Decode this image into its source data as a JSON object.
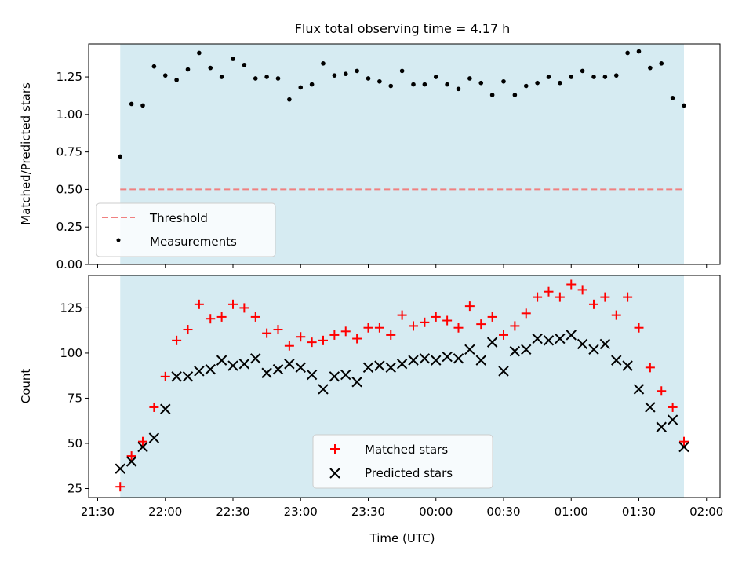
{
  "chart_data": [
    {
      "type": "scatter",
      "title": "Flux total observing time = 4.17 h",
      "xlabel": "",
      "ylabel": "Matched/Predicted stars",
      "xlim": [
        "21:26",
        "02:06"
      ],
      "ylim": [
        0,
        1.47
      ],
      "yticks": [
        0.0,
        0.25,
        0.5,
        0.75,
        1.0,
        1.25
      ],
      "ytick_labels": [
        "0.00",
        "0.25",
        "0.50",
        "0.75",
        "1.00",
        "1.25"
      ],
      "grid": false,
      "observing_window": [
        "21:40",
        "01:50"
      ],
      "legend_position": "lower-left",
      "threshold": {
        "name": "Threshold",
        "value": 0.5,
        "color": "#f08080"
      },
      "series": [
        {
          "name": "Measurements",
          "color": "#000000",
          "x": [
            "21:40",
            "21:45",
            "21:50",
            "21:55",
            "22:00",
            "22:05",
            "22:10",
            "22:15",
            "22:20",
            "22:25",
            "22:30",
            "22:35",
            "22:40",
            "22:45",
            "22:50",
            "22:55",
            "23:00",
            "23:05",
            "23:10",
            "23:15",
            "23:20",
            "23:25",
            "23:30",
            "23:35",
            "23:40",
            "23:45",
            "23:50",
            "23:55",
            "00:00",
            "00:05",
            "00:10",
            "00:15",
            "00:20",
            "00:25",
            "00:30",
            "00:35",
            "00:40",
            "00:45",
            "00:50",
            "00:55",
            "01:00",
            "01:05",
            "01:10",
            "01:15",
            "01:20",
            "01:25",
            "01:30",
            "01:35",
            "01:40",
            "01:45",
            "01:50"
          ],
          "values": [
            0.72,
            1.07,
            1.06,
            1.32,
            1.26,
            1.23,
            1.3,
            1.41,
            1.31,
            1.25,
            1.37,
            1.33,
            1.24,
            1.25,
            1.24,
            1.1,
            1.18,
            1.2,
            1.34,
            1.26,
            1.27,
            1.29,
            1.24,
            1.22,
            1.19,
            1.29,
            1.2,
            1.2,
            1.25,
            1.2,
            1.17,
            1.24,
            1.21,
            1.13,
            1.22,
            1.13,
            1.19,
            1.21,
            1.25,
            1.21,
            1.25,
            1.29,
            1.25,
            1.25,
            1.26,
            1.41,
            1.42,
            1.31,
            1.34,
            1.11,
            1.06
          ]
        }
      ]
    },
    {
      "type": "scatter",
      "title": "",
      "xlabel": "Time (UTC)",
      "ylabel": "Count",
      "xlim": [
        "21:26",
        "02:06"
      ],
      "ylim": [
        20,
        143
      ],
      "xticks": [
        "21:30",
        "22:00",
        "22:30",
        "23:00",
        "23:30",
        "00:00",
        "00:30",
        "01:00",
        "01:30",
        "02:00"
      ],
      "yticks": [
        25,
        50,
        75,
        100,
        125
      ],
      "grid": false,
      "observing_window": [
        "21:40",
        "01:50"
      ],
      "legend_position": "bottom-center",
      "series": [
        {
          "name": "Matched stars",
          "marker": "plus",
          "color": "#ff0000",
          "x": [
            "21:40",
            "21:45",
            "21:50",
            "21:55",
            "22:00",
            "22:05",
            "22:10",
            "22:15",
            "22:20",
            "22:25",
            "22:30",
            "22:35",
            "22:40",
            "22:45",
            "22:50",
            "22:55",
            "23:00",
            "23:05",
            "23:10",
            "23:15",
            "23:20",
            "23:25",
            "23:30",
            "23:35",
            "23:40",
            "23:45",
            "23:50",
            "23:55",
            "00:00",
            "00:05",
            "00:10",
            "00:15",
            "00:20",
            "00:25",
            "00:30",
            "00:35",
            "00:40",
            "00:45",
            "00:50",
            "00:55",
            "01:00",
            "01:05",
            "01:10",
            "01:15",
            "01:20",
            "01:25",
            "01:30",
            "01:35",
            "01:40",
            "01:45",
            "01:50"
          ],
          "values": [
            26,
            43,
            51,
            70,
            87,
            107,
            113,
            127,
            119,
            120,
            127,
            125,
            120,
            111,
            113,
            104,
            109,
            106,
            107,
            110,
            112,
            108,
            114,
            114,
            110,
            121,
            115,
            117,
            120,
            118,
            114,
            126,
            116,
            120,
            110,
            115,
            122,
            131,
            134,
            131,
            138,
            135,
            127,
            131,
            121,
            131,
            114,
            92,
            79,
            70,
            51
          ]
        },
        {
          "name": "Predicted stars",
          "marker": "x",
          "color": "#000000",
          "x": [
            "21:40",
            "21:45",
            "21:50",
            "21:55",
            "22:00",
            "22:05",
            "22:10",
            "22:15",
            "22:20",
            "22:25",
            "22:30",
            "22:35",
            "22:40",
            "22:45",
            "22:50",
            "22:55",
            "23:00",
            "23:05",
            "23:10",
            "23:15",
            "23:20",
            "23:25",
            "23:30",
            "23:35",
            "23:40",
            "23:45",
            "23:50",
            "23:55",
            "00:00",
            "00:05",
            "00:10",
            "00:15",
            "00:20",
            "00:25",
            "00:30",
            "00:35",
            "00:40",
            "00:45",
            "00:50",
            "00:55",
            "01:00",
            "01:05",
            "01:10",
            "01:15",
            "01:20",
            "01:25",
            "01:30",
            "01:35",
            "01:40",
            "01:45",
            "01:50"
          ],
          "values": [
            36,
            40,
            48,
            53,
            69,
            87,
            87,
            90,
            91,
            96,
            93,
            94,
            97,
            89,
            91,
            94,
            92,
            88,
            80,
            87,
            88,
            84,
            92,
            93,
            92,
            94,
            96,
            97,
            96,
            98,
            97,
            102,
            96,
            106,
            90,
            101,
            102,
            108,
            107,
            108,
            110,
            105,
            102,
            105,
            96,
            93,
            80,
            70,
            59,
            63,
            48
          ]
        }
      ]
    }
  ]
}
